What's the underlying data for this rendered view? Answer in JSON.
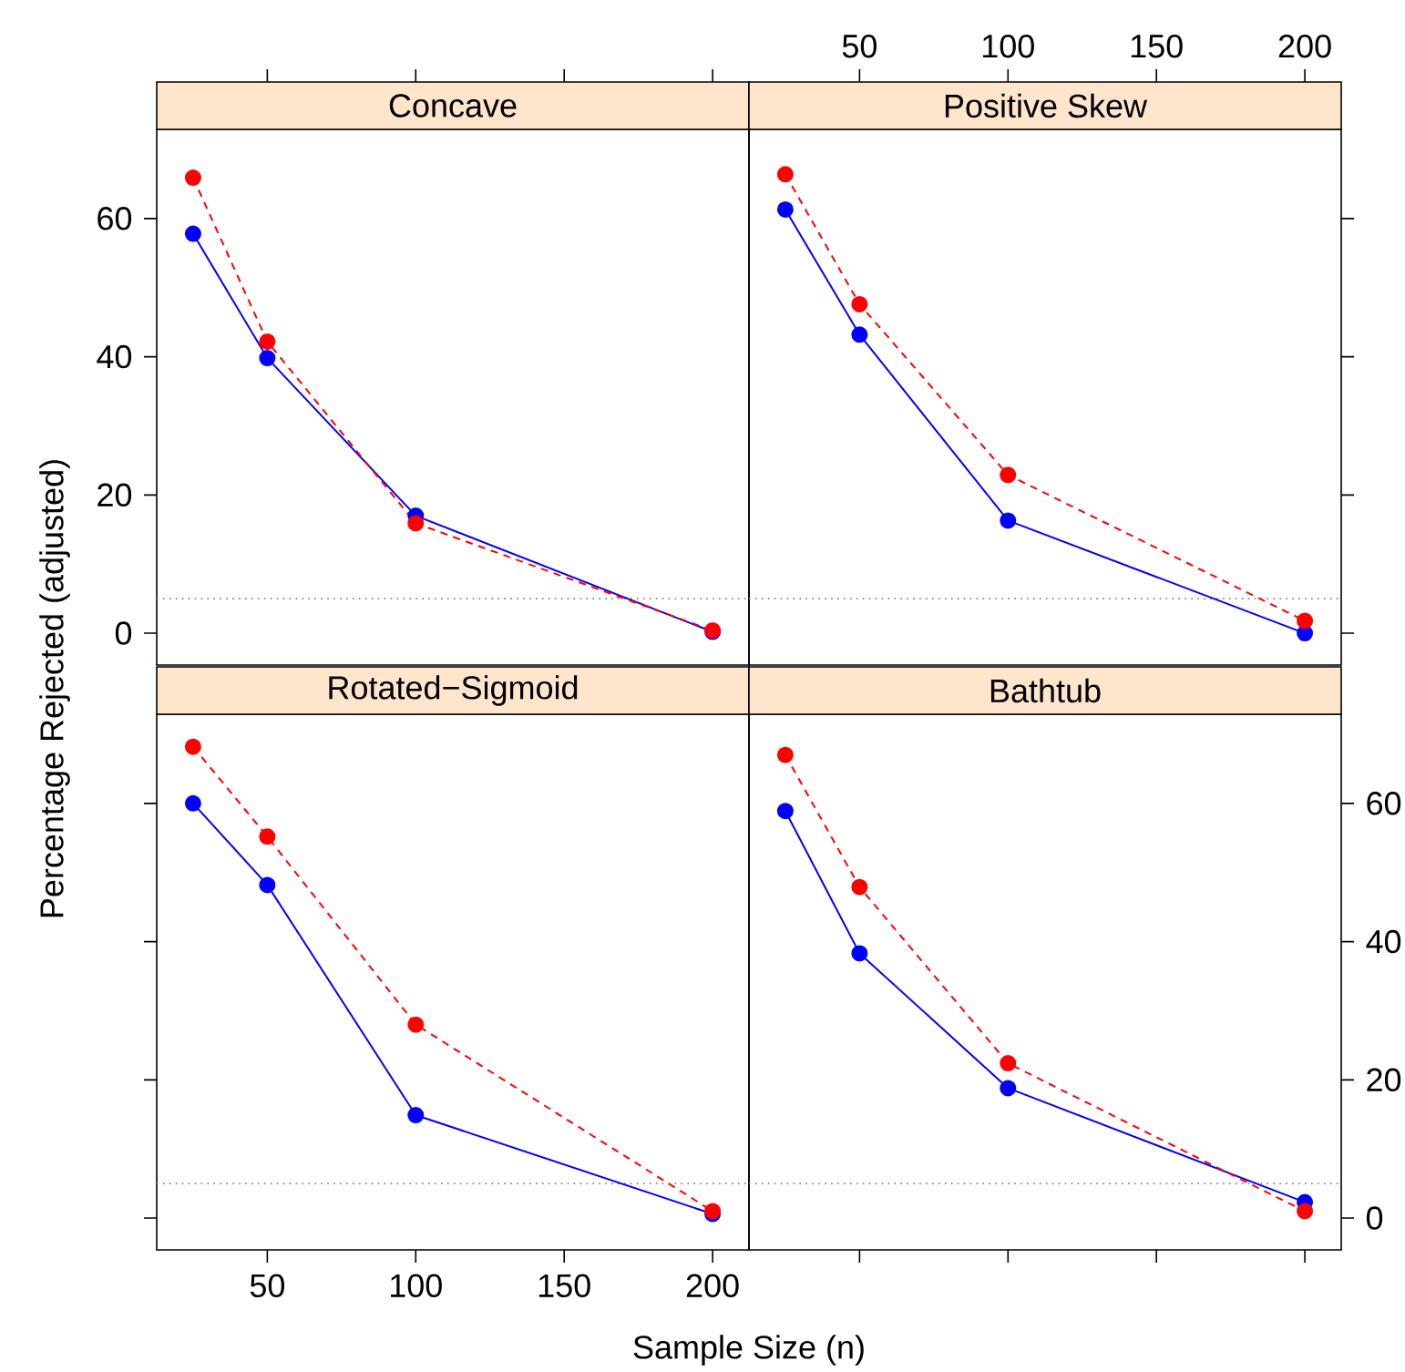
{
  "chart_data": [
    {
      "type": "line",
      "title": "Concave",
      "ylabel": "Percentage Rejected (adjusted)",
      "x": [
        25,
        50,
        100,
        200
      ],
      "xlim": [
        12.75,
        212.25
      ],
      "ylim": [
        -4.6,
        72.9
      ],
      "xticks": [
        50,
        100,
        150,
        200
      ],
      "yticks": [
        0,
        20,
        40,
        60
      ],
      "tick_labels": "y",
      "marker": "circle",
      "grid": false,
      "series": [
        {
          "color": "#0000ff",
          "line_style": "solid",
          "values": [
            57.8,
            39.8,
            17.0,
            0.2
          ]
        },
        {
          "color": "#ff0000",
          "line_style": "dashed",
          "values": [
            65.9,
            42.2,
            15.9,
            0.4
          ]
        }
      ],
      "ref_lines": [
        {
          "axis": "y",
          "value": 5,
          "color": "#808080",
          "line_style": "dotted"
        }
      ]
    },
    {
      "type": "line",
      "title": "Positive Skew",
      "x": [
        25,
        50,
        100,
        200
      ],
      "xlim": [
        12.75,
        212.25
      ],
      "ylim": [
        -4.6,
        72.9
      ],
      "xticks": [
        50,
        100,
        150,
        200
      ],
      "yticks": [
        0,
        20,
        40,
        60
      ],
      "tick_labels": "x",
      "marker": "circle",
      "grid": false,
      "series": [
        {
          "color": "#0000ff",
          "line_style": "solid",
          "values": [
            61.3,
            43.2,
            16.3,
            0.0
          ]
        },
        {
          "color": "#ff0000",
          "line_style": "dashed",
          "values": [
            66.4,
            47.6,
            22.9,
            1.8
          ]
        }
      ],
      "ref_lines": [
        {
          "axis": "y",
          "value": 5,
          "color": "#808080",
          "line_style": "dotted"
        }
      ]
    },
    {
      "type": "line",
      "title": "Rotated−Sigmoid",
      "xlabel": "Sample Size (n)",
      "x": [
        25,
        50,
        100,
        200
      ],
      "xlim": [
        12.75,
        212.25
      ],
      "ylim": [
        -4.6,
        72.9
      ],
      "xticks": [
        50,
        100,
        150,
        200
      ],
      "yticks": [
        0,
        20,
        40,
        60
      ],
      "tick_labels": "x",
      "marker": "circle",
      "grid": false,
      "series": [
        {
          "color": "#0000ff",
          "line_style": "solid",
          "values": [
            60.0,
            48.2,
            14.9,
            0.6
          ]
        },
        {
          "color": "#ff0000",
          "line_style": "dashed",
          "values": [
            68.2,
            55.2,
            28.0,
            1.0
          ]
        }
      ],
      "ref_lines": [
        {
          "axis": "y",
          "value": 5,
          "color": "#808080",
          "line_style": "dotted"
        }
      ]
    },
    {
      "type": "line",
      "title": "Bathtub",
      "x": [
        25,
        50,
        100,
        200
      ],
      "xlim": [
        12.75,
        212.25
      ],
      "ylim": [
        -4.6,
        72.9
      ],
      "xticks": [
        50,
        100,
        150,
        200
      ],
      "yticks": [
        0,
        20,
        40,
        60
      ],
      "tick_labels": "y",
      "marker": "circle",
      "grid": false,
      "series": [
        {
          "color": "#0000ff",
          "line_style": "solid",
          "values": [
            58.9,
            38.3,
            18.8,
            2.3
          ]
        },
        {
          "color": "#ff0000",
          "line_style": "dashed",
          "values": [
            67.0,
            47.9,
            22.4,
            1.0
          ]
        }
      ],
      "ref_lines": [
        {
          "axis": "y",
          "value": 5,
          "color": "#808080",
          "line_style": "dotted"
        }
      ]
    }
  ]
}
